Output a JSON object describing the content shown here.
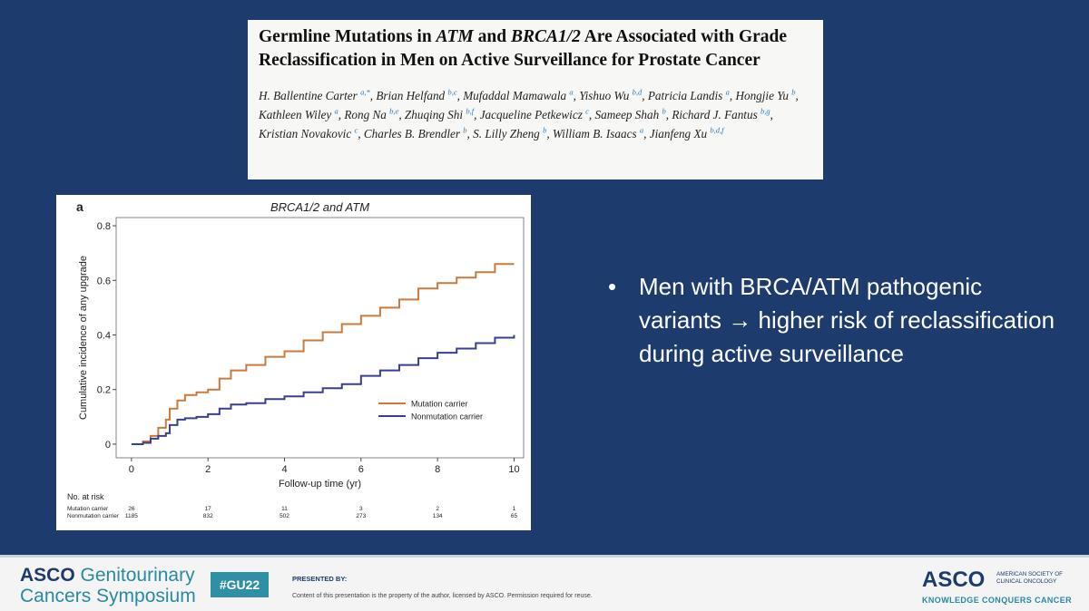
{
  "paper": {
    "title": [
      "Germline Mutations in ",
      "ATM",
      " and ",
      "BRCA1/2",
      " Are Associated with Grade Reclassification in Men on Active Surveillance for Prostate Cancer"
    ],
    "authors": [
      {
        "name": "H. Ballentine Carter",
        "aff": "a,*"
      },
      {
        "name": "Brian Helfand",
        "aff": "b,c"
      },
      {
        "name": "Mufaddal Mamawala",
        "aff": "a"
      },
      {
        "name": "Yishuo Wu",
        "aff": "b,d"
      },
      {
        "name": "Patricia Landis",
        "aff": "a"
      },
      {
        "name": "Hongjie Yu",
        "aff": "b"
      },
      {
        "name": "Kathleen Wiley",
        "aff": "a"
      },
      {
        "name": "Rong Na",
        "aff": "b,e"
      },
      {
        "name": "Zhuqing Shi",
        "aff": "b,f"
      },
      {
        "name": "Jacqueline Petkewicz",
        "aff": "c"
      },
      {
        "name": "Sameep Shah",
        "aff": "b"
      },
      {
        "name": "Richard J. Fantus",
        "aff": "b,g"
      },
      {
        "name": "Kristian Novakovic",
        "aff": "c"
      },
      {
        "name": "Charles B. Brendler",
        "aff": "b"
      },
      {
        "name": "S. Lilly Zheng",
        "aff": "b"
      },
      {
        "name": "William B. Isaacs",
        "aff": "a"
      },
      {
        "name": "Jianfeng Xu",
        "aff": "b,d,f"
      }
    ]
  },
  "chart_data": {
    "type": "line",
    "panel_label": "a",
    "title": "BRCA1/2 and ATM",
    "x_label": "Follow-up time (yr)",
    "y_label": "Cumulative incidence of any upgrade",
    "x": [
      0,
      0.3,
      0.5,
      0.7,
      0.9,
      1,
      1.2,
      1.4,
      1.7,
      2,
      2.3,
      2.6,
      3,
      3.5,
      4,
      4.5,
      5,
      5.5,
      6,
      6.5,
      7,
      7.5,
      8,
      8.5,
      9,
      9.5,
      10
    ],
    "series": [
      {
        "name": "Mutation carrier",
        "color": "#c97a3c",
        "values": [
          0,
          0.01,
          0.03,
          0.06,
          0.09,
          0.13,
          0.16,
          0.18,
          0.19,
          0.2,
          0.24,
          0.27,
          0.29,
          0.32,
          0.34,
          0.38,
          0.41,
          0.44,
          0.47,
          0.5,
          0.53,
          0.57,
          0.59,
          0.61,
          0.63,
          0.66,
          0.66
        ]
      },
      {
        "name": "Nonmutation carrier",
        "color": "#3a3f8f",
        "values": [
          0,
          0.005,
          0.02,
          0.03,
          0.04,
          0.07,
          0.09,
          0.095,
          0.1,
          0.11,
          0.13,
          0.145,
          0.15,
          0.165,
          0.175,
          0.19,
          0.205,
          0.22,
          0.25,
          0.27,
          0.29,
          0.315,
          0.335,
          0.35,
          0.37,
          0.39,
          0.4
        ]
      }
    ],
    "xlim": [
      -0.4,
      10.25
    ],
    "ylim": [
      -0.05,
      0.83
    ],
    "xticks": [
      0,
      2,
      4,
      6,
      8,
      10
    ],
    "yticks": [
      0,
      0.2,
      0.4,
      0.6,
      0.8
    ],
    "legend": "lower right",
    "risk_table": {
      "title": "No. at risk",
      "times": [
        0,
        2,
        4,
        6,
        8,
        10
      ],
      "rows": [
        {
          "name": "Mutation carrier",
          "values": [
            26,
            17,
            11,
            3,
            2,
            1
          ]
        },
        {
          "name": "Nonmutation carrier",
          "values": [
            1185,
            832,
            502,
            273,
            134,
            65
          ]
        }
      ]
    }
  },
  "bullets": [
    "Men with BRCA/ATM pathogenic variants → higher risk of reclassification during active surveillance"
  ],
  "footer": {
    "meeting_org": "ASCO",
    "meeting_name_1": "Genitourinary",
    "meeting_name_2": "Cancers Symposium",
    "hashtag": "#GU22",
    "presented_by": "PRESENTED BY:",
    "disclaimer": "Content of this presentation is the property of the author, licensed by ASCO. Permission required for reuse.",
    "logo": "ASCO",
    "society_1": "AMERICAN SOCIETY OF",
    "society_2": "CLINICAL ONCOLOGY",
    "tagline": "KNOWLEDGE CONQUERS CANCER"
  }
}
